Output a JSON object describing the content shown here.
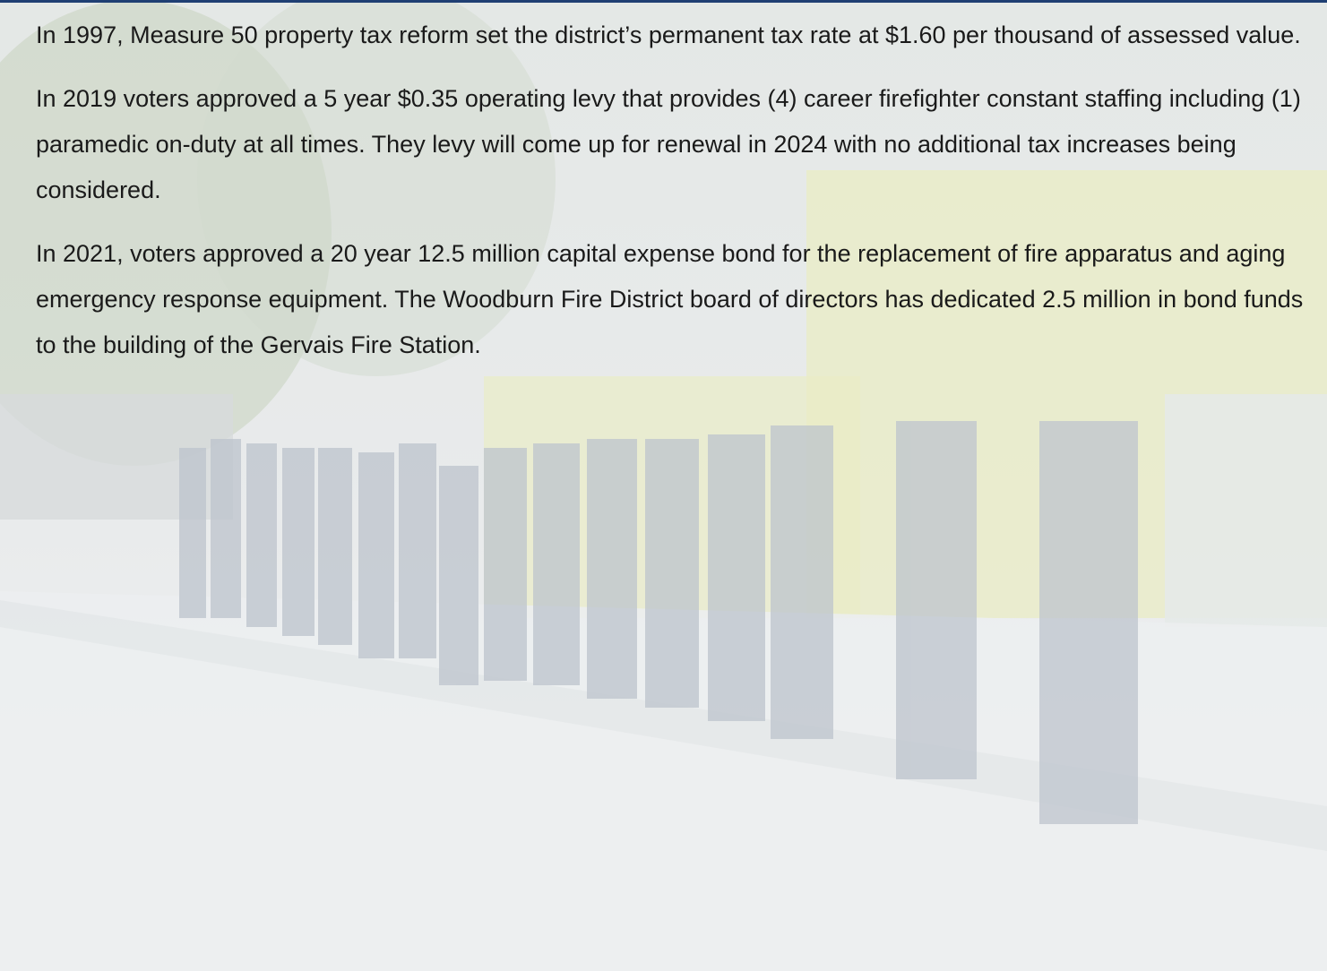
{
  "paragraphs": [
    "In 1997, Measure 50 property tax reform set the district’s permanent tax rate at $1.60 per thousand of assessed value.",
    "In 2019 voters approved a 5 year $0.35 operating levy that provides (4) career firefighter constant staffing including (1) paramedic on-duty at all times. They levy will come up for renewal in 2024 with no additional tax increases being considered.",
    "In 2021, voters approved a 20 year 12.5 million capital expense bond for the replacement of fire apparatus and aging emergency response equipment. The Woodburn Fire District board of directors has dedicated 2.5 million in bond funds to the building of the Gervais Fire Station."
  ]
}
